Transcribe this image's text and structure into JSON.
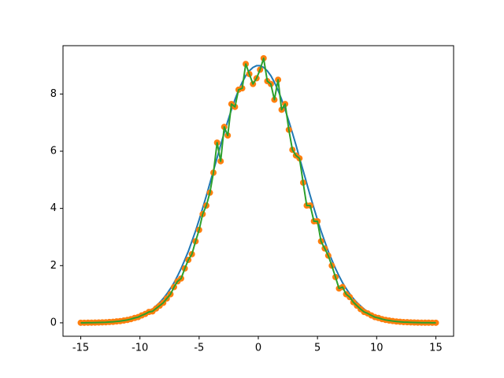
{
  "chart_data": {
    "type": "line",
    "x": [
      -15,
      -14.7,
      -14.39,
      -14.09,
      -13.79,
      -13.48,
      -13.18,
      -12.88,
      -12.58,
      -12.27,
      -11.97,
      -11.67,
      -11.36,
      -11.06,
      -10.76,
      -10.45,
      -10.15,
      -9.85,
      -9.55,
      -9.24,
      -8.94,
      -8.64,
      -8.33,
      -8.03,
      -7.73,
      -7.42,
      -7.12,
      -6.82,
      -6.52,
      -6.21,
      -5.91,
      -5.61,
      -5.3,
      -5,
      -4.7,
      -4.39,
      -4.09,
      -3.79,
      -3.48,
      -3.18,
      -2.88,
      -2.58,
      -2.27,
      -1.97,
      -1.67,
      -1.36,
      -1.06,
      -0.76,
      -0.45,
      -0.15,
      0.15,
      0.45,
      0.76,
      1.06,
      1.36,
      1.67,
      1.97,
      2.27,
      2.58,
      2.88,
      3.18,
      3.48,
      3.79,
      4.09,
      4.39,
      4.7,
      5,
      5.3,
      5.61,
      5.91,
      6.21,
      6.52,
      6.82,
      7.12,
      7.42,
      7.73,
      8.03,
      8.33,
      8.64,
      8.94,
      9.24,
      9.55,
      9.85,
      10.15,
      10.45,
      10.76,
      11.06,
      11.36,
      11.67,
      11.97,
      12.27,
      12.58,
      12.88,
      13.18,
      13.48,
      13.79,
      14.09,
      14.39,
      14.7,
      15
    ],
    "series": [
      {
        "style": "line",
        "color": "#1f77b4",
        "values": [
          0.002,
          0.004,
          0.005,
          0.006,
          0.008,
          0.012,
          0.016,
          0.021,
          0.027,
          0.036,
          0.047,
          0.061,
          0.08,
          0.1,
          0.13,
          0.165,
          0.207,
          0.26,
          0.32,
          0.39,
          0.48,
          0.59,
          0.71,
          0.85,
          1.01,
          1.2,
          1.4,
          1.64,
          1.9,
          2.2,
          2.5,
          2.85,
          3.21,
          3.6,
          4.01,
          4.44,
          4.88,
          5.32,
          5.77,
          6.22,
          6.64,
          7.05,
          7.45,
          7.81,
          8.13,
          8.41,
          8.64,
          8.81,
          8.93,
          8.99,
          8.99,
          8.93,
          8.81,
          8.64,
          8.41,
          8.13,
          7.81,
          7.45,
          7.05,
          6.64,
          6.22,
          5.77,
          5.32,
          4.88,
          4.44,
          4.01,
          3.6,
          3.21,
          2.85,
          2.5,
          2.2,
          1.9,
          1.64,
          1.4,
          1.2,
          1.01,
          0.85,
          0.71,
          0.59,
          0.48,
          0.39,
          0.32,
          0.26,
          0.207,
          0.165,
          0.13,
          0.1,
          0.08,
          0.061,
          0.047,
          0.036,
          0.027,
          0.021,
          0.016,
          0.012,
          0.008,
          0.006,
          0.005,
          0.004,
          0.002
        ]
      },
      {
        "style": "scatter",
        "color": "#ff7f0e",
        "values": [
          0.002,
          0.003,
          0.005,
          0.006,
          0.008,
          0.012,
          0.016,
          0.02,
          0.028,
          0.035,
          0.048,
          0.06,
          0.08,
          0.1,
          0.13,
          0.17,
          0.2,
          0.26,
          0.31,
          0.38,
          0.4,
          0.5,
          0.6,
          0.7,
          0.85,
          1.0,
          1.25,
          1.45,
          1.55,
          1.9,
          2.2,
          2.4,
          2.85,
          3.25,
          3.8,
          4.1,
          4.55,
          5.25,
          6.3,
          5.65,
          6.85,
          6.55,
          7.65,
          7.55,
          8.15,
          8.2,
          9.05,
          8.7,
          8.35,
          8.55,
          8.85,
          9.25,
          8.45,
          8.35,
          7.8,
          8.5,
          7.45,
          7.65,
          6.75,
          6.05,
          5.85,
          5.75,
          4.9,
          4.1,
          4.1,
          3.55,
          3.55,
          2.85,
          2.6,
          2.35,
          2.0,
          1.6,
          1.2,
          1.25,
          1.0,
          0.9,
          0.72,
          0.6,
          0.48,
          0.38,
          0.33,
          0.26,
          0.2,
          0.17,
          0.13,
          0.1,
          0.08,
          0.062,
          0.046,
          0.037,
          0.027,
          0.021,
          0.016,
          0.012,
          0.008,
          0.006,
          0.005,
          0.004,
          0.003,
          0.002
        ]
      },
      {
        "style": "line",
        "color": "#2ca02c",
        "values": [
          0.002,
          0.003,
          0.005,
          0.006,
          0.008,
          0.012,
          0.016,
          0.02,
          0.028,
          0.035,
          0.048,
          0.06,
          0.08,
          0.1,
          0.13,
          0.17,
          0.2,
          0.26,
          0.31,
          0.38,
          0.4,
          0.5,
          0.6,
          0.7,
          0.85,
          1.0,
          1.25,
          1.45,
          1.55,
          1.9,
          2.2,
          2.4,
          2.85,
          3.25,
          3.8,
          4.1,
          4.55,
          5.25,
          6.3,
          5.65,
          6.85,
          6.55,
          7.65,
          7.55,
          8.15,
          8.2,
          9.05,
          8.7,
          8.35,
          8.55,
          8.85,
          9.25,
          8.45,
          8.35,
          7.8,
          8.5,
          7.45,
          7.65,
          6.75,
          6.05,
          5.85,
          5.75,
          4.9,
          4.1,
          4.1,
          3.55,
          3.55,
          2.85,
          2.6,
          2.35,
          2.0,
          1.6,
          1.2,
          1.25,
          1.0,
          0.9,
          0.72,
          0.6,
          0.48,
          0.38,
          0.33,
          0.26,
          0.2,
          0.17,
          0.13,
          0.1,
          0.08,
          0.062,
          0.046,
          0.037,
          0.027,
          0.021,
          0.016,
          0.012,
          0.008,
          0.006,
          0.005,
          0.004,
          0.003,
          0.002
        ]
      }
    ],
    "xlim": [
      -16.5,
      16.5
    ],
    "xticks": [
      -15,
      -10,
      -5,
      0,
      5,
      10,
      15
    ],
    "ylim": [
      -0.47,
      9.69
    ],
    "yticks": [
      0,
      2,
      4,
      6,
      8
    ],
    "grid": false
  }
}
